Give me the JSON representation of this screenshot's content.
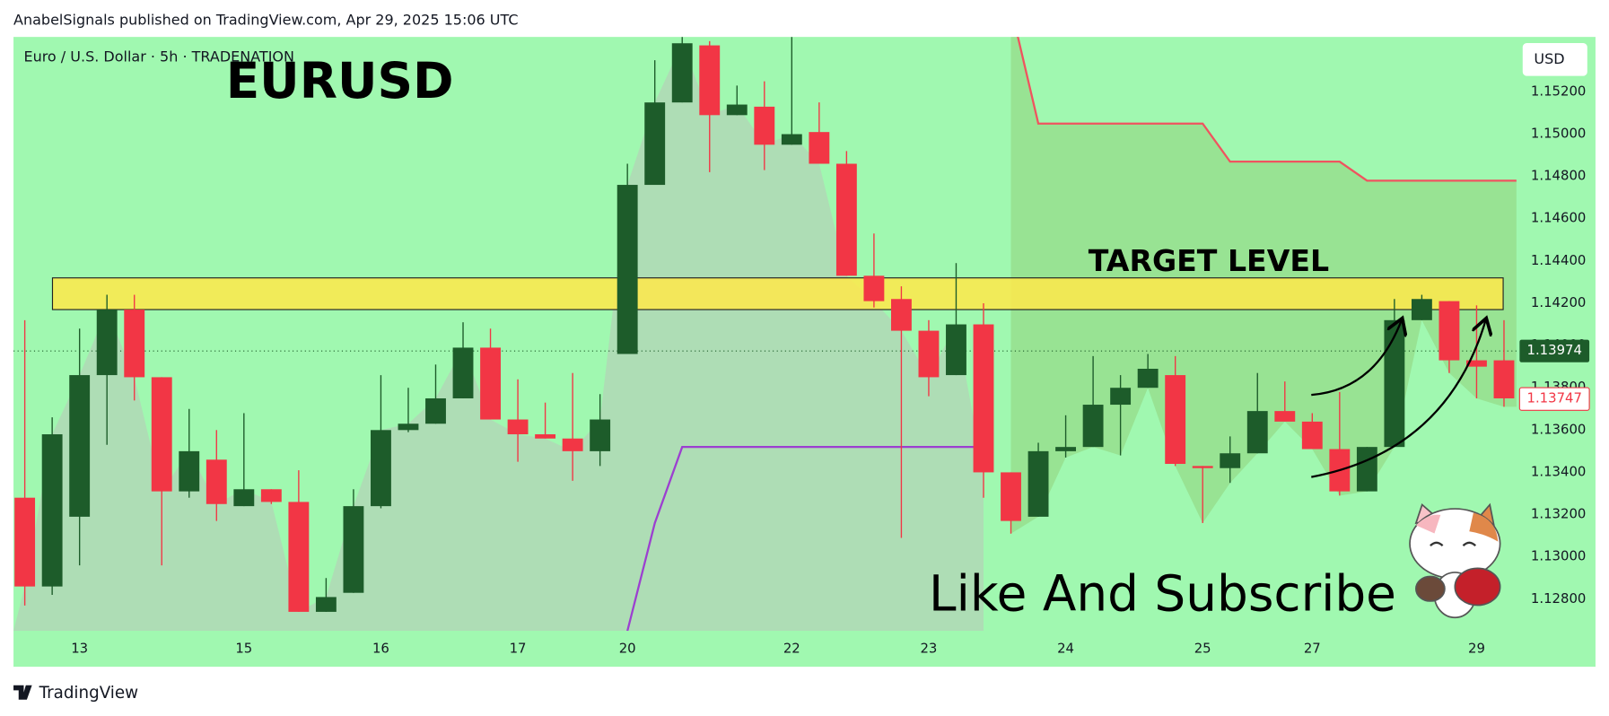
{
  "header": {
    "attribution": "AnabelSignals published on TradingView.com, Apr 29, 2025 15:06 UTC"
  },
  "footer": {
    "brand": "TradingView"
  },
  "chart_data": {
    "type": "candlestick",
    "title": "EURUSD",
    "subtitle": "Euro / U.S. Dollar · 5h · TRADENATION",
    "currency": "USD",
    "annotations": [
      "TARGET LEVEL",
      "Like And Subscribe"
    ],
    "categories": [
      null,
      null,
      "13",
      null,
      null,
      null,
      null,
      null,
      "15",
      null,
      null,
      null,
      null,
      "16",
      null,
      null,
      null,
      null,
      "17",
      null,
      null,
      null,
      "20",
      null,
      null,
      null,
      null,
      null,
      "22",
      null,
      null,
      null,
      null,
      "23",
      null,
      null,
      null,
      null,
      "24",
      null,
      null,
      null,
      null,
      "25",
      null,
      null,
      null,
      "27",
      null,
      null,
      null,
      null,
      null,
      "29",
      null
    ],
    "open": [
      1.1328,
      1.1286,
      1.1319,
      1.1386,
      1.1417,
      1.1385,
      1.1331,
      1.1346,
      1.1324,
      1.1332,
      1.1326,
      1.1274,
      1.1283,
      1.1324,
      1.136,
      1.1363,
      1.1375,
      1.1399,
      1.1365,
      1.1358,
      1.1356,
      1.135,
      1.1396,
      1.1476,
      1.1515,
      1.1542,
      1.1509,
      1.1513,
      1.1495,
      1.1501,
      1.1486,
      1.1433,
      1.1422,
      1.1407,
      1.1386,
      1.141,
      1.134,
      1.1319,
      1.135,
      1.1352,
      1.1372,
      1.138,
      1.1386,
      1.1343,
      1.1342,
      1.1349,
      1.1369,
      1.1364,
      1.1351,
      1.1331,
      1.1352,
      1.1412,
      1.1421,
      1.1393,
      1.1393
    ],
    "high": [
      1.1412,
      1.1366,
      1.1408,
      1.1424,
      1.1424,
      1.1385,
      1.137,
      1.136,
      1.1368,
      1.1332,
      1.1341,
      1.129,
      1.1332,
      1.1386,
      1.138,
      1.1391,
      1.1411,
      1.1408,
      1.1384,
      1.1373,
      1.1387,
      1.1377,
      1.1486,
      1.1535,
      1.1546,
      1.1544,
      1.1523,
      1.1525,
      1.1546,
      1.1515,
      1.1492,
      1.1453,
      1.1428,
      1.1412,
      1.1439,
      1.142,
      1.134,
      1.1354,
      1.1367,
      1.1395,
      1.1386,
      1.1396,
      1.1395,
      1.1343,
      1.1357,
      1.1387,
      1.1383,
      1.1368,
      1.1378,
      1.1352,
      1.1422,
      1.1424,
      1.1421,
      1.1419,
      1.1412
    ],
    "low": [
      1.1277,
      1.1282,
      1.1296,
      1.1353,
      1.1374,
      1.1296,
      1.1328,
      1.1317,
      1.1324,
      1.1325,
      1.1274,
      1.1274,
      1.1283,
      1.1323,
      1.1359,
      1.1363,
      1.1375,
      1.1365,
      1.1345,
      1.1356,
      1.1336,
      1.1343,
      1.1396,
      1.1476,
      1.1515,
      1.1482,
      1.1509,
      1.1483,
      1.1495,
      1.1486,
      1.1433,
      1.1418,
      1.1309,
      1.1376,
      1.1386,
      1.1328,
      1.1311,
      1.1319,
      1.1347,
      1.1352,
      1.1348,
      1.138,
      1.1343,
      1.1316,
      1.1335,
      1.1349,
      1.1364,
      1.1351,
      1.1329,
      1.1331,
      1.1352,
      1.1412,
      1.1387,
      1.1375,
      1.1371
    ],
    "close": [
      1.1286,
      1.1358,
      1.1386,
      1.1417,
      1.1385,
      1.1331,
      1.135,
      1.1325,
      1.1332,
      1.1326,
      1.1274,
      1.1281,
      1.1324,
      1.136,
      1.1363,
      1.1375,
      1.1399,
      1.1365,
      1.1358,
      1.1356,
      1.135,
      1.1365,
      1.1476,
      1.1515,
      1.1543,
      1.1509,
      1.1514,
      1.1495,
      1.15,
      1.1486,
      1.1433,
      1.1421,
      1.1407,
      1.1385,
      1.141,
      1.134,
      1.1317,
      1.135,
      1.1352,
      1.1372,
      1.138,
      1.1389,
      1.1344,
      1.1342,
      1.1349,
      1.1369,
      1.1364,
      1.1351,
      1.1331,
      1.1352,
      1.1412,
      1.1422,
      1.1393,
      1.139,
      1.1375
    ],
    "up_color": "#1d5c2a",
    "down_color": "#f23645",
    "lines": [
      {
        "color": "#f0535f",
        "values": [
          null,
          null,
          null,
          null,
          null,
          null,
          null,
          null,
          null,
          null,
          null,
          null,
          null,
          null,
          null,
          null,
          null,
          null,
          null,
          null,
          null,
          null,
          null,
          null,
          null,
          null,
          null,
          null,
          null,
          null,
          null,
          null,
          null,
          null,
          null,
          null,
          1.156,
          1.1505,
          1.1505,
          1.1505,
          1.1505,
          1.1505,
          1.1505,
          1.1505,
          1.1487,
          1.1487,
          1.1487,
          1.1487,
          1.1487,
          1.1478,
          1.1478,
          1.1478,
          1.1478,
          1.1478,
          1.1478
        ]
      },
      {
        "color": "#9c3fd0",
        "values": [
          null,
          null,
          null,
          null,
          null,
          null,
          null,
          null,
          null,
          null,
          null,
          null,
          null,
          null,
          null,
          null,
          null,
          null,
          null,
          null,
          null,
          null,
          1.1265,
          1.1316,
          1.1352,
          1.1352,
          1.1352,
          1.1352,
          1.1352,
          1.1352,
          1.1352,
          1.1352,
          1.1352,
          1.1352,
          1.1352,
          1.1352,
          null,
          null,
          null,
          null,
          null,
          null,
          null,
          null,
          null,
          null,
          null,
          null,
          null,
          null,
          null,
          null,
          null,
          null,
          null
        ]
      }
    ],
    "target_zone": {
      "low": 1.1417,
      "high": 1.1432,
      "color": "#ffe94a"
    },
    "price_labels": [
      1.13974,
      1.13747
    ],
    "ylim": [
      1.1265,
      1.1546
    ],
    "yticks": [
      {
        "value": 1.128,
        "label": "1.12800"
      },
      {
        "value": 1.13,
        "label": "1.13000"
      },
      {
        "value": 1.132,
        "label": "1.13200"
      },
      {
        "value": 1.134,
        "label": "1.13400"
      },
      {
        "value": 1.136,
        "label": "1.13600"
      },
      {
        "value": 1.138,
        "label": "1.13800"
      },
      {
        "value": 1.14,
        "label": "1.14000"
      },
      {
        "value": 1.142,
        "label": "1.14200"
      },
      {
        "value": 1.144,
        "label": "1.14400"
      },
      {
        "value": 1.146,
        "label": "1.14600"
      },
      {
        "value": 1.148,
        "label": "1.14800"
      },
      {
        "value": 1.15,
        "label": "1.15000"
      },
      {
        "value": 1.152,
        "label": "1.15200"
      }
    ]
  }
}
